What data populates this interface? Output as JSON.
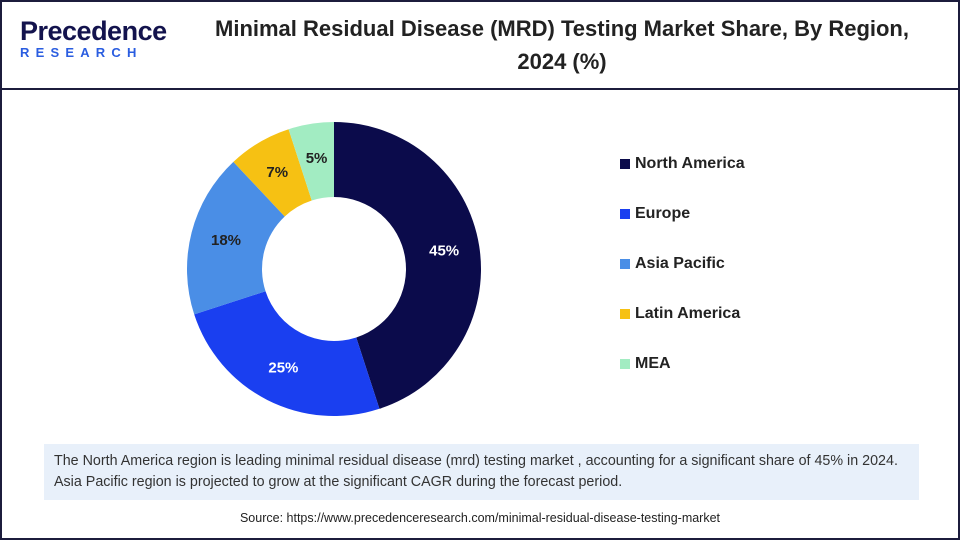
{
  "logo": {
    "name": "Precedence",
    "tagline": "RESEARCH"
  },
  "chart_data": {
    "type": "donut",
    "title": "Minimal Residual Disease (MRD) Testing Market Share, By Region, 2024 (%)",
    "categories": [
      "North America",
      "Europe",
      "Asia Pacific",
      "Latin America",
      "MEA"
    ],
    "values": [
      45,
      25,
      18,
      7,
      5
    ],
    "value_labels": [
      "45%",
      "25%",
      "18%",
      "7%",
      "5%"
    ],
    "colors": [
      "#0b0b4b",
      "#1a3ff0",
      "#4a8ee6",
      "#f6c113",
      "#a2ecc2"
    ],
    "legend": "right"
  },
  "caption": "The North America region is leading minimal residual disease (mrd) testing market , accounting for a significant share of 45% in 2024. Asia Pacific region is projected to grow at the significant CAGR during the forecast period.",
  "source": "Source: https://www.precedenceresearch.com/minimal-residual-disease-testing-market"
}
